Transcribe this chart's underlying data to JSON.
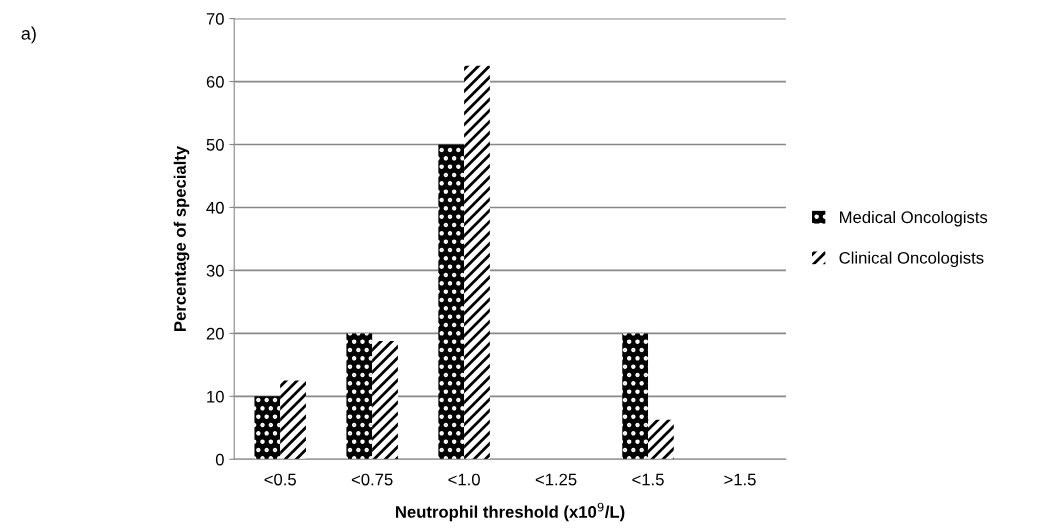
{
  "chart_data": {
    "type": "bar",
    "categories": [
      "<0.5",
      "<0.75",
      "<1.0",
      "<1.25",
      "<1.5",
      ">1.5"
    ],
    "series": [
      {
        "name": "Medical Oncologists",
        "color": "#000000",
        "values": [
          10,
          20,
          50,
          0,
          20,
          0
        ]
      },
      {
        "name": "Clinical Oncologists",
        "color": "#000000",
        "values": [
          12.5,
          18.8,
          62.5,
          0,
          6.3,
          0
        ]
      }
    ],
    "xlabel": "Neutrophil threshold (x10$^{9}$/L)",
    "ylabel": "Percentage of specialty",
    "ylim": [
      0,
      70
    ],
    "yticks": [
      0,
      10,
      20,
      30,
      40,
      50,
      60,
      70
    ],
    "grid": "y",
    "legend": "right",
    "annotations": [
      "a)"
    ]
  }
}
